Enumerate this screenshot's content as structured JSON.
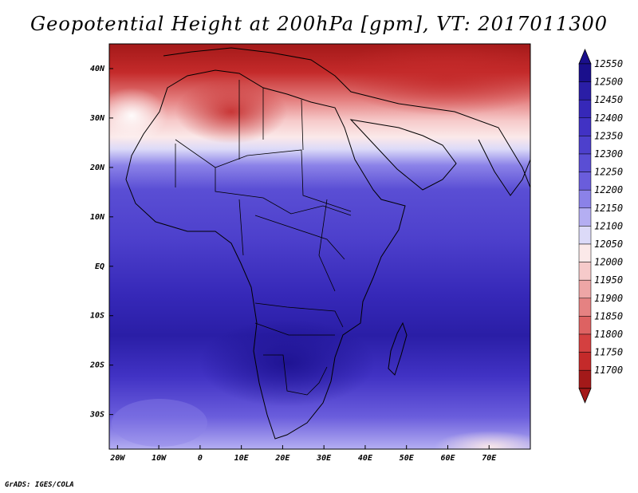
{
  "title": "Geopotential Height at 200hPa [gpm], VT: 2017011300",
  "credit": "GrADS: IGES/COLA",
  "map": {
    "lon_range": [
      -22,
      80
    ],
    "lat_range": [
      -37,
      45
    ],
    "lon_ticks": [
      {
        "value": -20,
        "label": "20W"
      },
      {
        "value": -10,
        "label": "10W"
      },
      {
        "value": 0,
        "label": "0"
      },
      {
        "value": 10,
        "label": "10E"
      },
      {
        "value": 20,
        "label": "20E"
      },
      {
        "value": 30,
        "label": "30E"
      },
      {
        "value": 40,
        "label": "40E"
      },
      {
        "value": 50,
        "label": "50E"
      },
      {
        "value": 60,
        "label": "60E"
      },
      {
        "value": 70,
        "label": "70E"
      }
    ],
    "lat_ticks": [
      {
        "value": 40,
        "label": "40N"
      },
      {
        "value": 30,
        "label": "30N"
      },
      {
        "value": 20,
        "label": "20N"
      },
      {
        "value": 10,
        "label": "10N"
      },
      {
        "value": 0,
        "label": "EQ"
      },
      {
        "value": -10,
        "label": "10S"
      },
      {
        "value": -20,
        "label": "20S"
      },
      {
        "value": -30,
        "label": "30S"
      }
    ]
  },
  "colorbar": {
    "levels": [
      12550,
      12500,
      12450,
      12400,
      12350,
      12300,
      12250,
      12200,
      12150,
      12100,
      12050,
      12000,
      11950,
      11900,
      11850,
      11800,
      11750,
      11700
    ],
    "labels": [
      "12550",
      "12500",
      "12450",
      "12400",
      "12350",
      "12300",
      "12250",
      "12200",
      "12150",
      "12100",
      "12050",
      "12000",
      "11950",
      "11900",
      "11850",
      "11800",
      "11750",
      "11700"
    ],
    "colors": [
      "#1a0f8c",
      "#2a1ea6",
      "#3628b8",
      "#4132c4",
      "#4d40cc",
      "#5a4ed4",
      "#6a5ddc",
      "#8b82e8",
      "#b4aef2",
      "#dcdaf8",
      "#fbe9e9",
      "#f6caca",
      "#eea6a6",
      "#e58282",
      "#dd6262",
      "#d44040",
      "#c42a2a",
      "#a31919"
    ]
  }
}
